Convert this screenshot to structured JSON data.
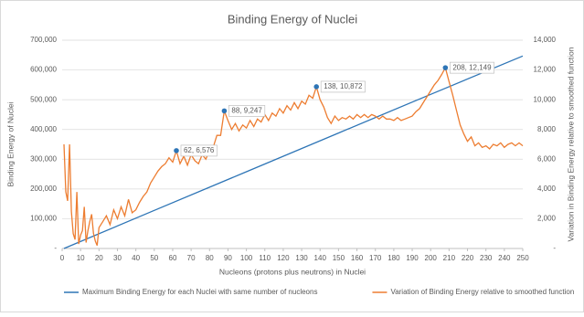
{
  "chart_data": {
    "type": "line",
    "title": "Binding Energy of Nuclei",
    "xlabel": "Nucleons (protons plus neutrons) in Nuclei",
    "ylabel": "Binding Energy of Nuclei",
    "y2label": "Variation in Binding Energy relative to smoothed function",
    "xlim": [
      0,
      250
    ],
    "xticks": [
      0,
      10,
      20,
      30,
      40,
      50,
      60,
      70,
      80,
      90,
      100,
      110,
      120,
      130,
      140,
      150,
      160,
      170,
      180,
      190,
      200,
      210,
      220,
      230,
      240,
      250
    ],
    "ylim": [
      0,
      700000
    ],
    "yticks": [
      {
        "value": 0,
        "label": "-"
      },
      {
        "value": 100000,
        "label": "100,000"
      },
      {
        "value": 200000,
        "label": "200,000"
      },
      {
        "value": 300000,
        "label": "300,000"
      },
      {
        "value": 400000,
        "label": "400,000"
      },
      {
        "value": 500000,
        "label": "500,000"
      },
      {
        "value": 600000,
        "label": "600,000"
      },
      {
        "value": 700000,
        "label": "700,000"
      }
    ],
    "y2lim": [
      0,
      14000
    ],
    "y2ticks": [
      {
        "value": 0,
        "label": "-"
      },
      {
        "value": 2000,
        "label": "2,000"
      },
      {
        "value": 4000,
        "label": "4,000"
      },
      {
        "value": 6000,
        "label": "6,000"
      },
      {
        "value": 8000,
        "label": "8,000"
      },
      {
        "value": 10000,
        "label": "10,000"
      },
      {
        "value": 12000,
        "label": "12,000"
      },
      {
        "value": 14000,
        "label": "14,000"
      }
    ],
    "grid": true,
    "legend": "bottom",
    "series": [
      {
        "name": "Maximum Binding Energy for each Nuclei with same number of nucleons",
        "color": "#2e75b6",
        "x": [
          1,
          50,
          100,
          150,
          200,
          250
        ],
        "values": [
          0,
          128000,
          258000,
          388000,
          518000,
          647000
        ]
      },
      {
        "name": "Variation of Binding Energy relative to smoothed function",
        "color": "#ed7d31",
        "axis": "y2",
        "x": [
          1,
          2,
          3,
          4,
          5,
          6,
          7,
          8,
          9,
          10,
          11,
          12,
          13,
          14,
          15,
          16,
          17,
          18,
          19,
          20,
          22,
          24,
          26,
          28,
          30,
          32,
          34,
          36,
          38,
          40,
          42,
          44,
          46,
          48,
          50,
          52,
          54,
          56,
          58,
          60,
          62,
          64,
          66,
          68,
          70,
          72,
          74,
          76,
          78,
          80,
          82,
          84,
          86,
          88,
          90,
          92,
          94,
          96,
          98,
          100,
          102,
          104,
          106,
          108,
          110,
          112,
          114,
          116,
          118,
          120,
          122,
          124,
          126,
          128,
          130,
          132,
          134,
          136,
          138,
          140,
          142,
          144,
          146,
          148,
          150,
          152,
          154,
          156,
          158,
          160,
          162,
          164,
          166,
          168,
          170,
          172,
          174,
          176,
          178,
          180,
          182,
          184,
          186,
          188,
          190,
          192,
          194,
          196,
          198,
          200,
          202,
          204,
          206,
          208,
          210,
          212,
          214,
          216,
          218,
          220,
          222,
          224,
          226,
          228,
          230,
          232,
          234,
          236,
          238,
          240,
          242,
          244,
          246,
          248,
          250
        ],
        "values": [
          7000,
          3800,
          3200,
          7000,
          2500,
          1000,
          600,
          3800,
          300,
          900,
          1200,
          2800,
          400,
          1200,
          1800,
          2300,
          1000,
          500,
          200,
          1400,
          1800,
          2200,
          1600,
          2600,
          2000,
          2800,
          2200,
          3300,
          2400,
          2600,
          3100,
          3500,
          3800,
          4400,
          4800,
          5200,
          5500,
          5700,
          6100,
          5800,
          6576,
          5700,
          6200,
          5600,
          6300,
          5900,
          5700,
          6300,
          6000,
          6600,
          6800,
          7600,
          7600,
          9247,
          8600,
          8000,
          8400,
          7900,
          8300,
          8100,
          8600,
          8200,
          8700,
          8500,
          9000,
          8600,
          9100,
          8900,
          9400,
          9100,
          9600,
          9300,
          9800,
          9400,
          9900,
          9700,
          10300,
          10100,
          10872,
          10000,
          9500,
          8800,
          8400,
          8900,
          8600,
          8800,
          8700,
          8900,
          8700,
          9000,
          8800,
          9000,
          8800,
          9000,
          8900,
          8700,
          8900,
          8700,
          8700,
          8600,
          8800,
          8600,
          8700,
          8800,
          8900,
          9200,
          9400,
          9800,
          10200,
          10600,
          11000,
          11300,
          11700,
          12149,
          11200,
          10300,
          9300,
          8300,
          7700,
          7200,
          7500,
          6900,
          7100,
          6800,
          6900,
          6700,
          7000,
          6900,
          7100,
          6800,
          7000,
          7100,
          6900,
          7100,
          6900
        ]
      }
    ],
    "annotations": [
      {
        "x": 62,
        "y": 6576,
        "label": "62,  6,576",
        "axis": "y2"
      },
      {
        "x": 88,
        "y": 9247,
        "label": "88,  9,247",
        "axis": "y2"
      },
      {
        "x": 138,
        "y": 10872,
        "label": "138,  10,872",
        "axis": "y2"
      },
      {
        "x": 208,
        "y": 12149,
        "label": "208,  12,149",
        "axis": "y2"
      }
    ]
  }
}
